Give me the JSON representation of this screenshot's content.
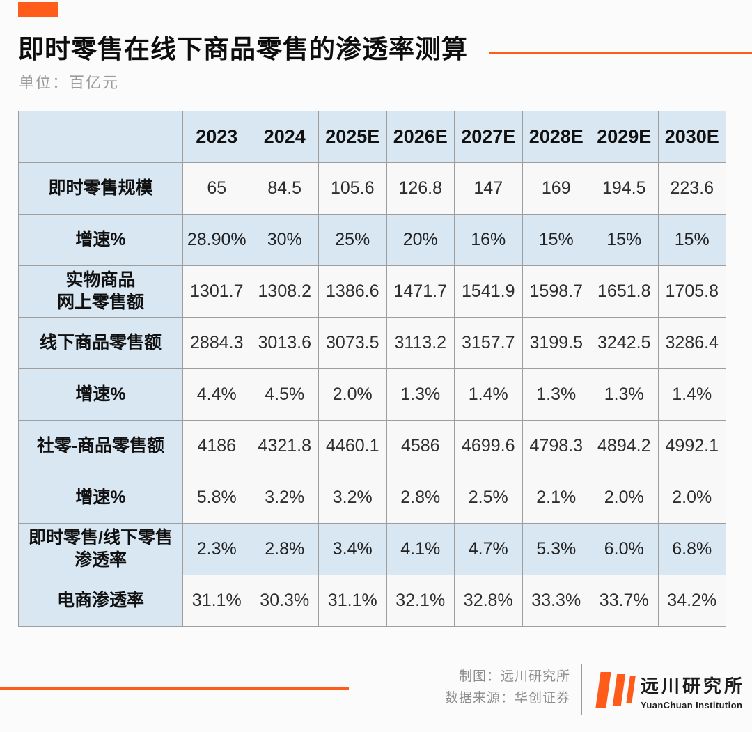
{
  "chart_data": {
    "type": "table",
    "title": "即时零售在线下商品零售的渗透率测算",
    "unit_label": "单位：百亿元",
    "columns": [
      "",
      "2023",
      "2024",
      "2025E",
      "2026E",
      "2027E",
      "2028E",
      "2029E",
      "2030E"
    ],
    "rows": [
      {
        "label": "即时零售规模",
        "highlight": false,
        "values": [
          "65",
          "84.5",
          "105.6",
          "126.8",
          "147",
          "169",
          "194.5",
          "223.6"
        ]
      },
      {
        "label": "增速%",
        "highlight": true,
        "values": [
          "28.90%",
          "30%",
          "25%",
          "20%",
          "16%",
          "15%",
          "15%",
          "15%"
        ]
      },
      {
        "label": "实物商品\n网上零售额",
        "highlight": false,
        "values": [
          "1301.7",
          "1308.2",
          "1386.6",
          "1471.7",
          "1541.9",
          "1598.7",
          "1651.8",
          "1705.8"
        ]
      },
      {
        "label": "线下商品零售额",
        "highlight": false,
        "values": [
          "2884.3",
          "3013.6",
          "3073.5",
          "3113.2",
          "3157.7",
          "3199.5",
          "3242.5",
          "3286.4"
        ]
      },
      {
        "label": "增速%",
        "highlight": false,
        "values": [
          "4.4%",
          "4.5%",
          "2.0%",
          "1.3%",
          "1.4%",
          "1.3%",
          "1.3%",
          "1.4%"
        ]
      },
      {
        "label": "社零-商品零售额",
        "highlight": false,
        "values": [
          "4186",
          "4321.8",
          "4460.1",
          "4586",
          "4699.6",
          "4798.3",
          "4894.2",
          "4992.1"
        ]
      },
      {
        "label": "增速%",
        "highlight": false,
        "values": [
          "5.8%",
          "3.2%",
          "3.2%",
          "2.8%",
          "2.5%",
          "2.1%",
          "2.0%",
          "2.0%"
        ]
      },
      {
        "label": "即时零售/线下零售\n渗透率",
        "highlight": true,
        "values": [
          "2.3%",
          "2.8%",
          "3.4%",
          "4.1%",
          "4.7%",
          "5.3%",
          "6.0%",
          "6.8%"
        ]
      },
      {
        "label": "电商渗透率",
        "highlight": false,
        "values": [
          "31.1%",
          "30.3%",
          "31.1%",
          "32.1%",
          "32.8%",
          "33.3%",
          "33.7%",
          "34.2%"
        ]
      }
    ]
  },
  "footer": {
    "credit1": "制图：远川研究所",
    "credit2": "数据来源：华创证券",
    "logo_cn": "远川研究所",
    "logo_en": "YuanChuan Institution"
  },
  "colors": {
    "accent_orange": "#FF5B1A",
    "header_blue": "#D9E7F3",
    "cell_gray": "#F8F8F8",
    "grid_gray": "#9E9E9E"
  }
}
